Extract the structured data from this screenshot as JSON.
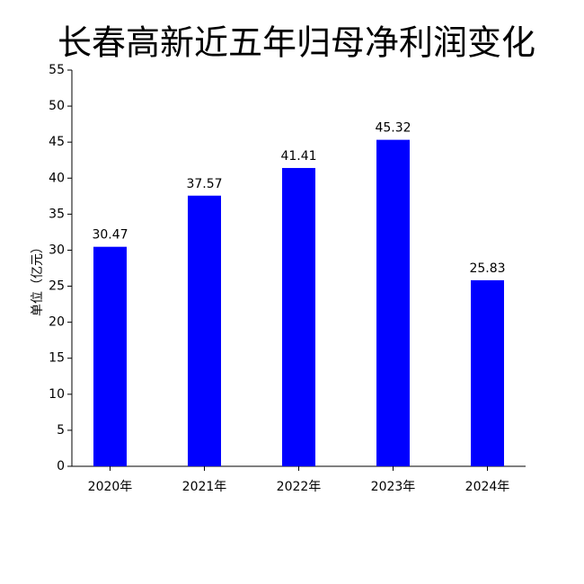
{
  "chart_data": {
    "type": "bar",
    "title": "长春高新近五年归母净利润变化",
    "y_label": "单位（亿元）",
    "categories": [
      "2020年",
      "2021年",
      "2022年",
      "2023年",
      "2024年"
    ],
    "values": [
      30.47,
      37.57,
      41.41,
      45.32,
      25.83
    ],
    "color": "#0000ff",
    "ylim": [
      0,
      55
    ],
    "yticks": [
      0,
      5,
      10,
      15,
      20,
      25,
      30,
      35,
      40,
      45,
      50,
      55
    ],
    "grid": false
  }
}
